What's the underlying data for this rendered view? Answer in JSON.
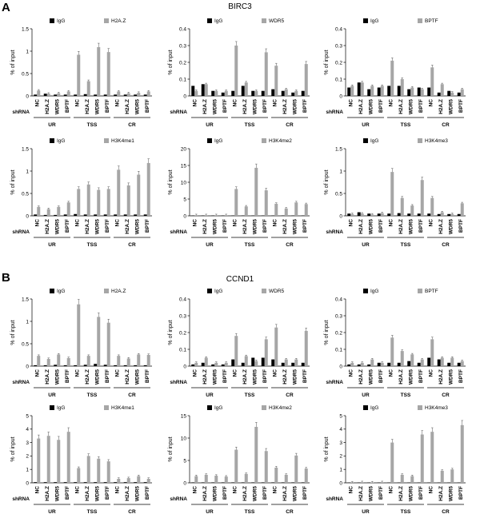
{
  "panel_labels": {
    "A": "A",
    "B": "B"
  },
  "section_titles": {
    "A": "BIRC3",
    "B": "CCND1"
  },
  "ylabel": "% of input",
  "shrna_label": "shRNA",
  "x_labels": [
    "NC",
    "H2A.Z",
    "WDR5",
    "BPTF",
    "NC",
    "H2A.Z",
    "WDR5",
    "BPTF",
    "NC",
    "H2A.Z",
    "WDR5",
    "BPTF"
  ],
  "groups": [
    "UR",
    "TSS",
    "CR"
  ],
  "legend_igg": "IgG",
  "colors": {
    "igg": "#000000",
    "target": "#a6a6a6"
  },
  "chart_data": [
    {
      "type": "bar",
      "section": "A",
      "target": "H2A.Z",
      "ylim": [
        0,
        1.5
      ],
      "yticks": [
        "0",
        "0.5",
        "1",
        "1.5"
      ],
      "series": [
        {
          "name": "IgG",
          "values": [
            0.03,
            0.05,
            0.03,
            0.03,
            0.03,
            0.04,
            0.03,
            0.03,
            0.03,
            0.03,
            0.03,
            0.03
          ]
        },
        {
          "name": "H2A.Z",
          "values": [
            0.12,
            0.05,
            0.06,
            0.1,
            0.92,
            0.33,
            1.09,
            0.98,
            0.1,
            0.06,
            0.07,
            0.1
          ]
        }
      ]
    },
    {
      "type": "bar",
      "section": "A",
      "target": "WDR5",
      "ylim": [
        0,
        0.4
      ],
      "yticks": [
        "0",
        "0.1",
        "0.2",
        "0.3",
        "0.4"
      ],
      "series": [
        {
          "name": "IgG",
          "values": [
            0.06,
            0.07,
            0.03,
            0.02,
            0.03,
            0.06,
            0.03,
            0.03,
            0.04,
            0.03,
            0.02,
            0.03
          ]
        },
        {
          "name": "WDR5",
          "values": [
            0.03,
            0.07,
            0.03,
            0.03,
            0.3,
            0.08,
            0.03,
            0.26,
            0.18,
            0.04,
            0.03,
            0.19
          ]
        }
      ]
    },
    {
      "type": "bar",
      "section": "A",
      "target": "BPTF",
      "ylim": [
        0,
        0.4
      ],
      "yticks": [
        "0",
        "0.1",
        "0.2",
        "0.3",
        "0.4"
      ],
      "series": [
        {
          "name": "IgG",
          "values": [
            0.05,
            0.08,
            0.04,
            0.05,
            0.06,
            0.06,
            0.04,
            0.05,
            0.05,
            0.02,
            0.03,
            0.02
          ]
        },
        {
          "name": "BPTF",
          "values": [
            0.06,
            0.08,
            0.06,
            0.06,
            0.21,
            0.1,
            0.05,
            0.04,
            0.17,
            0.07,
            0.02,
            0.04
          ]
        }
      ]
    },
    {
      "type": "bar",
      "section": "A",
      "target": "H3K4me1",
      "ylim": [
        0,
        1.5
      ],
      "yticks": [
        "0",
        "0.5",
        "1",
        "1.5"
      ],
      "series": [
        {
          "name": "IgG",
          "values": [
            0.03,
            0.02,
            0.02,
            0.03,
            0.04,
            0.03,
            0.03,
            0.03,
            0.03,
            0.03,
            0.03,
            0.03
          ]
        },
        {
          "name": "H3K4me1",
          "values": [
            0.2,
            0.15,
            0.2,
            0.3,
            0.6,
            0.7,
            0.58,
            0.6,
            1.03,
            0.68,
            0.92,
            1.18
          ]
        }
      ]
    },
    {
      "type": "bar",
      "section": "A",
      "target": "H3K4me2",
      "ylim": [
        0,
        20
      ],
      "yticks": [
        "0",
        "5",
        "10",
        "15",
        "20"
      ],
      "series": [
        {
          "name": "IgG",
          "values": [
            0.1,
            0.1,
            0.1,
            0.1,
            0.1,
            0.1,
            0.1,
            0.1,
            0.1,
            0.1,
            0.1,
            0.1
          ]
        },
        {
          "name": "H3K4me2",
          "values": [
            0.2,
            0.2,
            0.2,
            0.2,
            8.0,
            2.8,
            14.3,
            7.6,
            3.6,
            2.2,
            4.0,
            3.5
          ]
        }
      ]
    },
    {
      "type": "bar",
      "section": "A",
      "target": "H3K4me3",
      "ylim": [
        0,
        1.5
      ],
      "yticks": [
        "0",
        "0.5",
        "1",
        "1.5"
      ],
      "series": [
        {
          "name": "IgG",
          "values": [
            0.05,
            0.08,
            0.05,
            0.05,
            0.05,
            0.06,
            0.05,
            0.05,
            0.05,
            0.04,
            0.04,
            0.04
          ]
        },
        {
          "name": "H3K4me3",
          "values": [
            0.04,
            0.05,
            0.03,
            0.06,
            0.98,
            0.4,
            0.23,
            0.8,
            0.4,
            0.08,
            0.04,
            0.28
          ]
        }
      ]
    },
    {
      "type": "bar",
      "section": "B",
      "target": "H2A.Z",
      "ylim": [
        0,
        1.5
      ],
      "yticks": [
        "0",
        "0.5",
        "1",
        "1.5"
      ],
      "series": [
        {
          "name": "IgG",
          "values": [
            0.02,
            0.02,
            0.03,
            0.02,
            0.02,
            0.03,
            0.05,
            0.03,
            0.02,
            0.02,
            0.02,
            0.02
          ]
        },
        {
          "name": "H2A.Z",
          "values": [
            0.23,
            0.16,
            0.26,
            0.18,
            1.38,
            0.23,
            1.1,
            0.97,
            0.23,
            0.17,
            0.26,
            0.25
          ]
        }
      ]
    },
    {
      "type": "bar",
      "section": "B",
      "target": "WDR5",
      "ylim": [
        0,
        0.4
      ],
      "yticks": [
        "0",
        "0.1",
        "0.2",
        "0.3",
        "0.4"
      ],
      "series": [
        {
          "name": "IgG",
          "values": [
            0.01,
            0.02,
            0.01,
            0.01,
            0.04,
            0.02,
            0.05,
            0.05,
            0.04,
            0.02,
            0.02,
            0.02
          ]
        },
        {
          "name": "WDR5",
          "values": [
            0.02,
            0.05,
            0.02,
            0.02,
            0.18,
            0.06,
            0.03,
            0.16,
            0.23,
            0.04,
            0.04,
            0.21
          ]
        }
      ]
    },
    {
      "type": "bar",
      "section": "B",
      "target": "BPTF",
      "ylim": [
        0,
        0.4
      ],
      "yticks": [
        "0",
        "0.1",
        "0.2",
        "0.3",
        "0.4"
      ],
      "series": [
        {
          "name": "IgG",
          "values": [
            0.01,
            0.01,
            0.01,
            0.02,
            0.02,
            0.02,
            0.03,
            0.02,
            0.05,
            0.04,
            0.02,
            0.02
          ]
        },
        {
          "name": "BPTF",
          "values": [
            0.02,
            0.02,
            0.04,
            0.02,
            0.17,
            0.09,
            0.07,
            0.04,
            0.16,
            0.05,
            0.05,
            0.03
          ]
        }
      ]
    },
    {
      "type": "bar",
      "section": "B",
      "target": "H3K4me1",
      "ylim": [
        0,
        5
      ],
      "yticks": [
        "0",
        "1",
        "2",
        "3",
        "4",
        "5"
      ],
      "series": [
        {
          "name": "IgG",
          "values": [
            0.05,
            0.05,
            0.05,
            0.05,
            0.05,
            0.05,
            0.05,
            0.05,
            0.05,
            0.05,
            0.05,
            0.05
          ]
        },
        {
          "name": "H3K4me1",
          "values": [
            3.3,
            3.5,
            3.2,
            3.8,
            1.1,
            2.0,
            1.8,
            1.6,
            0.3,
            0.35,
            0.5,
            0.3
          ]
        }
      ]
    },
    {
      "type": "bar",
      "section": "B",
      "target": "H3K4me2",
      "ylim": [
        0,
        15
      ],
      "yticks": [
        "0",
        "5",
        "10",
        "15"
      ],
      "series": [
        {
          "name": "IgG",
          "values": [
            0.1,
            0.1,
            0.1,
            0.1,
            0.1,
            0.1,
            0.1,
            0.1,
            0.1,
            0.1,
            0.1,
            0.1
          ]
        },
        {
          "name": "H3K4me2",
          "values": [
            1.5,
            1.8,
            1.6,
            1.4,
            7.4,
            2.0,
            12.5,
            7.1,
            3.4,
            1.8,
            6.1,
            3.2
          ]
        }
      ]
    },
    {
      "type": "bar",
      "section": "B",
      "target": "H3K4me3",
      "ylim": [
        0,
        5
      ],
      "yticks": [
        "0",
        "1",
        "2",
        "3",
        "4",
        "5"
      ],
      "series": [
        {
          "name": "IgG",
          "values": [
            0.02,
            0.02,
            0.02,
            0.02,
            0.02,
            0.02,
            0.02,
            0.02,
            0.02,
            0.02,
            0.02,
            0.02
          ]
        },
        {
          "name": "H3K4me3",
          "values": [
            0.02,
            0.05,
            0.03,
            0.05,
            3.0,
            0.6,
            0.5,
            3.6,
            3.8,
            0.9,
            1.0,
            4.3
          ]
        }
      ]
    }
  ]
}
